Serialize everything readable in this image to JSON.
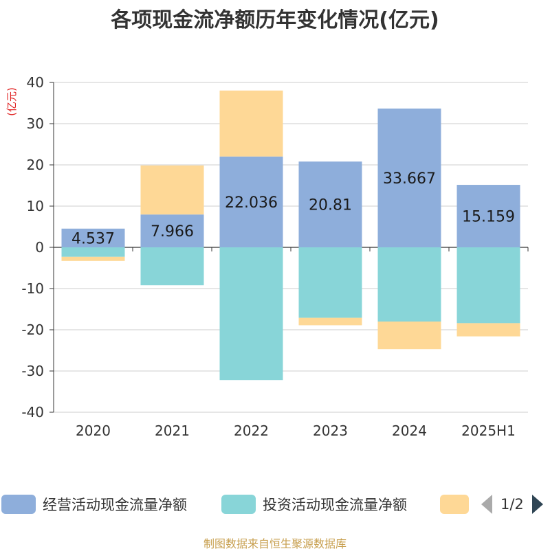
{
  "chart_data": {
    "type": "bar",
    "stacked": true,
    "title": "各项现金流净额历年变化情况(亿元)",
    "ylabel": "(亿元)",
    "xlabel": "",
    "categories": [
      "2020",
      "2021",
      "2022",
      "2023",
      "2024",
      "2025H1"
    ],
    "ylim": [
      -40,
      40
    ],
    "yticks": [
      40,
      30,
      20,
      10,
      0,
      -10,
      -20,
      -30,
      -40
    ],
    "grid": true,
    "legend_position": "bottom",
    "series": [
      {
        "name": "经营活动现金流量净额",
        "color": "#8eaedb",
        "values": [
          4.537,
          7.966,
          22.036,
          20.81,
          33.667,
          15.159
        ],
        "labels": [
          "4.537",
          "7.966",
          "22.036",
          "20.81",
          "33.667",
          "15.159"
        ]
      },
      {
        "name": "投资活动现金流量净额",
        "color": "#88d5d8",
        "values": [
          -2.3,
          -9.2,
          -32.2,
          -17.1,
          -18.0,
          -18.4
        ]
      },
      {
        "name": "",
        "color": "#fed896",
        "values": [
          -1.0,
          11.9,
          16.0,
          -1.8,
          -6.7,
          -3.2
        ]
      }
    ]
  },
  "legend": {
    "pager": "1/2"
  },
  "source": "制图数据来自恒生聚源数据库"
}
